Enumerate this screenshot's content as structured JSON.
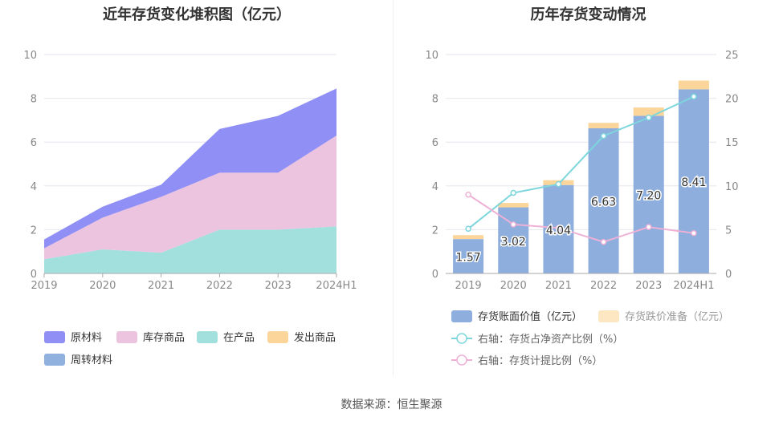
{
  "source": "数据来源：恒生聚源",
  "colors": {
    "原材料": "#8f8ff5",
    "库存商品": "#ecc4e0",
    "在产品": "#a2e0de",
    "发出商品": "#fcd59a",
    "周转材料": "#90b0de",
    "bar": "#8eaede",
    "bar_top": "#fcd59a",
    "line1": "#7dd6dc",
    "line2": "#eeb1d5",
    "axis_text": "#888888",
    "grid": "#e6e6ee"
  },
  "chart_data": [
    {
      "type": "area",
      "title": "近年存货变化堆积图（亿元）",
      "x": [
        "2019",
        "2020",
        "2021",
        "2022",
        "2023",
        "2024H1"
      ],
      "ylim": [
        0,
        10
      ],
      "yticks": [
        "0",
        "2",
        "4",
        "6",
        "8",
        "10"
      ],
      "stacked": true,
      "series": [
        {
          "name": "在产品",
          "values": [
            0.65,
            1.1,
            0.95,
            2.0,
            2.0,
            2.15
          ]
        },
        {
          "name": "库存商品",
          "values": [
            0.5,
            1.45,
            2.55,
            2.6,
            2.6,
            4.15
          ]
        },
        {
          "name": "原材料",
          "values": [
            0.4,
            0.5,
            0.55,
            2.0,
            2.6,
            2.15
          ]
        },
        {
          "name": "发出商品",
          "values": [
            0,
            0,
            0,
            0,
            0,
            0
          ]
        },
        {
          "name": "周转材料",
          "values": [
            0,
            0,
            0,
            0,
            0,
            0
          ]
        }
      ],
      "legend": [
        {
          "name": "原材料",
          "color_key": "原材料"
        },
        {
          "name": "库存商品",
          "color_key": "库存商品"
        },
        {
          "name": "在产品",
          "color_key": "在产品"
        },
        {
          "name": "发出商品",
          "color_key": "发出商品"
        },
        {
          "name": "周转材料",
          "color_key": "周转材料"
        }
      ],
      "legend_position": "bottom",
      "grid": true
    },
    {
      "type": "bar",
      "title": "历年存货变动情况",
      "categories": [
        "2019",
        "2020",
        "2021",
        "2022",
        "2023",
        "2024H1"
      ],
      "ylim": [
        0,
        10
      ],
      "yticks": [
        "0",
        "2",
        "4",
        "6",
        "8",
        "10"
      ],
      "y2lim": [
        0,
        25
      ],
      "y2ticks": [
        "0",
        "5",
        "10",
        "15",
        "20",
        "25"
      ],
      "series": [
        {
          "name": "存货账面价值（亿元）",
          "values": [
            1.57,
            3.02,
            4.04,
            6.63,
            7.2,
            8.41
          ],
          "labels": [
            "1.57",
            "3.02",
            "4.04",
            "6.63",
            "7.20",
            "8.41"
          ]
        },
        {
          "name": "存货跌价准备（亿元）",
          "values": [
            0.18,
            0.2,
            0.22,
            0.25,
            0.38,
            0.4
          ]
        },
        {
          "name": "右轴：存货占净资产比例（%）",
          "axis": "right",
          "values": [
            5.1,
            9.2,
            10.2,
            15.7,
            17.8,
            20.2
          ]
        },
        {
          "name": "右轴：存货计提比例（%）",
          "axis": "right",
          "values": [
            9.0,
            5.6,
            5.2,
            3.6,
            5.3,
            4.6
          ]
        }
      ],
      "legend_position": "bottom",
      "grid": true
    }
  ]
}
